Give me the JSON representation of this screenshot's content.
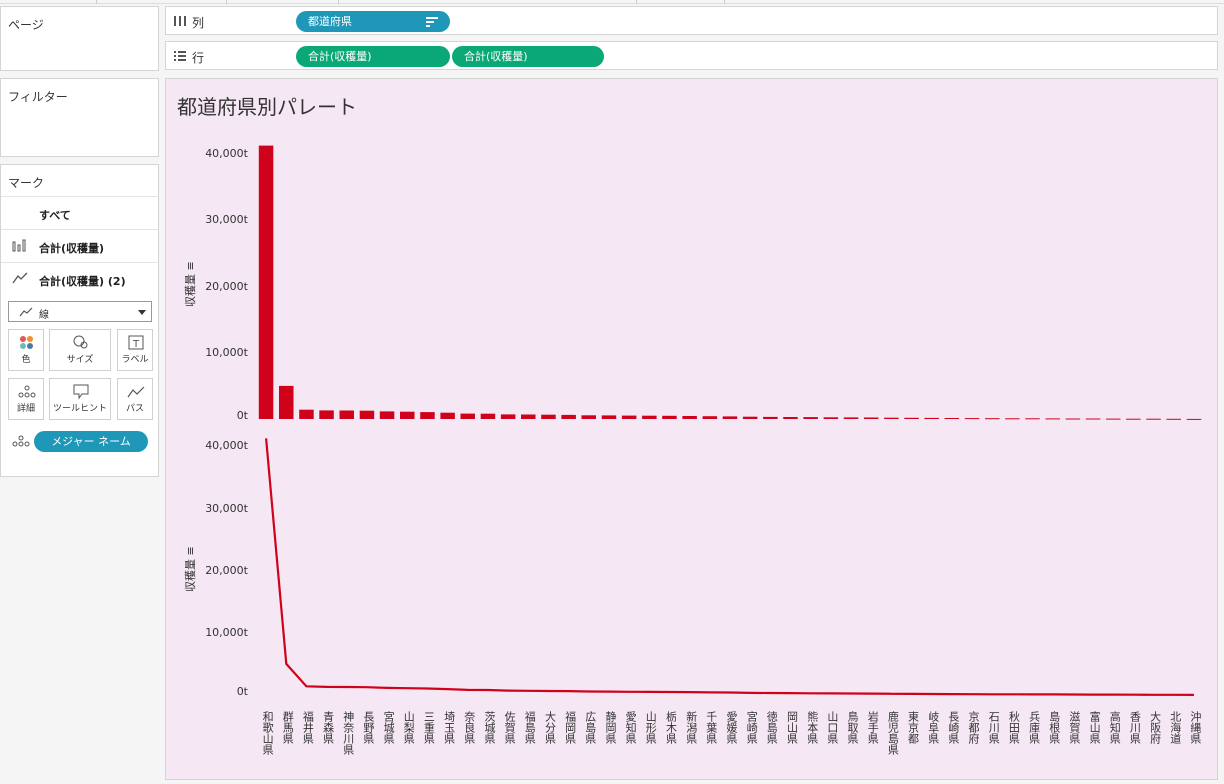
{
  "shelves": {
    "pages_title": "ページ",
    "filters_title": "フィルター",
    "columns_label": "列",
    "rows_label": "行",
    "column_pill": "都道府県",
    "row_pills": [
      "合計(収穫量)",
      "合計(収穫量)"
    ]
  },
  "marks": {
    "title": "マーク",
    "all_label": "すべて",
    "layer1_label": "合計(収穫量)",
    "layer2_label": "合計(収穫量) (2)",
    "mark_type": "線",
    "tiles": {
      "color": "色",
      "size": "サイズ",
      "label": "ラベル",
      "detail": "詳細",
      "tooltip": "ツールヒント",
      "path": "パス"
    },
    "detail_pill": "メジャー ネーム"
  },
  "viz": {
    "title": "都道府県別パレート",
    "accent_color": "#d0021b",
    "background_color": "#f5e7f3"
  },
  "chart_data": [
    {
      "type": "bar",
      "ylabel": "収穫量",
      "ylim": [
        0,
        42000
      ],
      "yticks": [
        "40,000t",
        "30,000t",
        "20,000t",
        "10,000t",
        "0t"
      ],
      "ytick_values": [
        40000,
        30000,
        20000,
        10000,
        0
      ],
      "categories": [
        "和歌山県",
        "群馬県",
        "福井県",
        "青森県",
        "神奈川県",
        "長野県",
        "宮城県",
        "山梨県",
        "三重県",
        "埼玉県",
        "奈良県",
        "茨城県",
        "佐賀県",
        "福島県",
        "大分県",
        "福岡県",
        "広島県",
        "静岡県",
        "愛知県",
        "山形県",
        "栃木県",
        "新潟県",
        "千葉県",
        "愛媛県",
        "宮崎県",
        "徳島県",
        "岡山県",
        "熊本県",
        "山口県",
        "鳥取県",
        "岩手県",
        "鹿児島県",
        "東京都",
        "岐阜県",
        "長崎県",
        "京都府",
        "石川県",
        "秋田県",
        "兵庫県",
        "島根県",
        "滋賀県",
        "富山県",
        "高知県",
        "香川県",
        "大阪府",
        "北海道",
        "沖縄県"
      ],
      "values": [
        41300,
        5000,
        1400,
        1300,
        1280,
        1250,
        1150,
        1100,
        1050,
        950,
        820,
        800,
        700,
        680,
        650,
        620,
        560,
        550,
        520,
        500,
        480,
        460,
        420,
        400,
        340,
        320,
        300,
        280,
        260,
        240,
        220,
        200,
        180,
        160,
        150,
        130,
        120,
        110,
        100,
        90,
        80,
        70,
        60,
        50,
        40,
        30,
        20
      ]
    },
    {
      "type": "line",
      "ylabel": "収穫量",
      "ylim": [
        0,
        42000
      ],
      "yticks": [
        "40,000t",
        "30,000t",
        "20,000t",
        "10,000t",
        "0t"
      ],
      "ytick_values": [
        40000,
        30000,
        20000,
        10000,
        0
      ]
    }
  ]
}
